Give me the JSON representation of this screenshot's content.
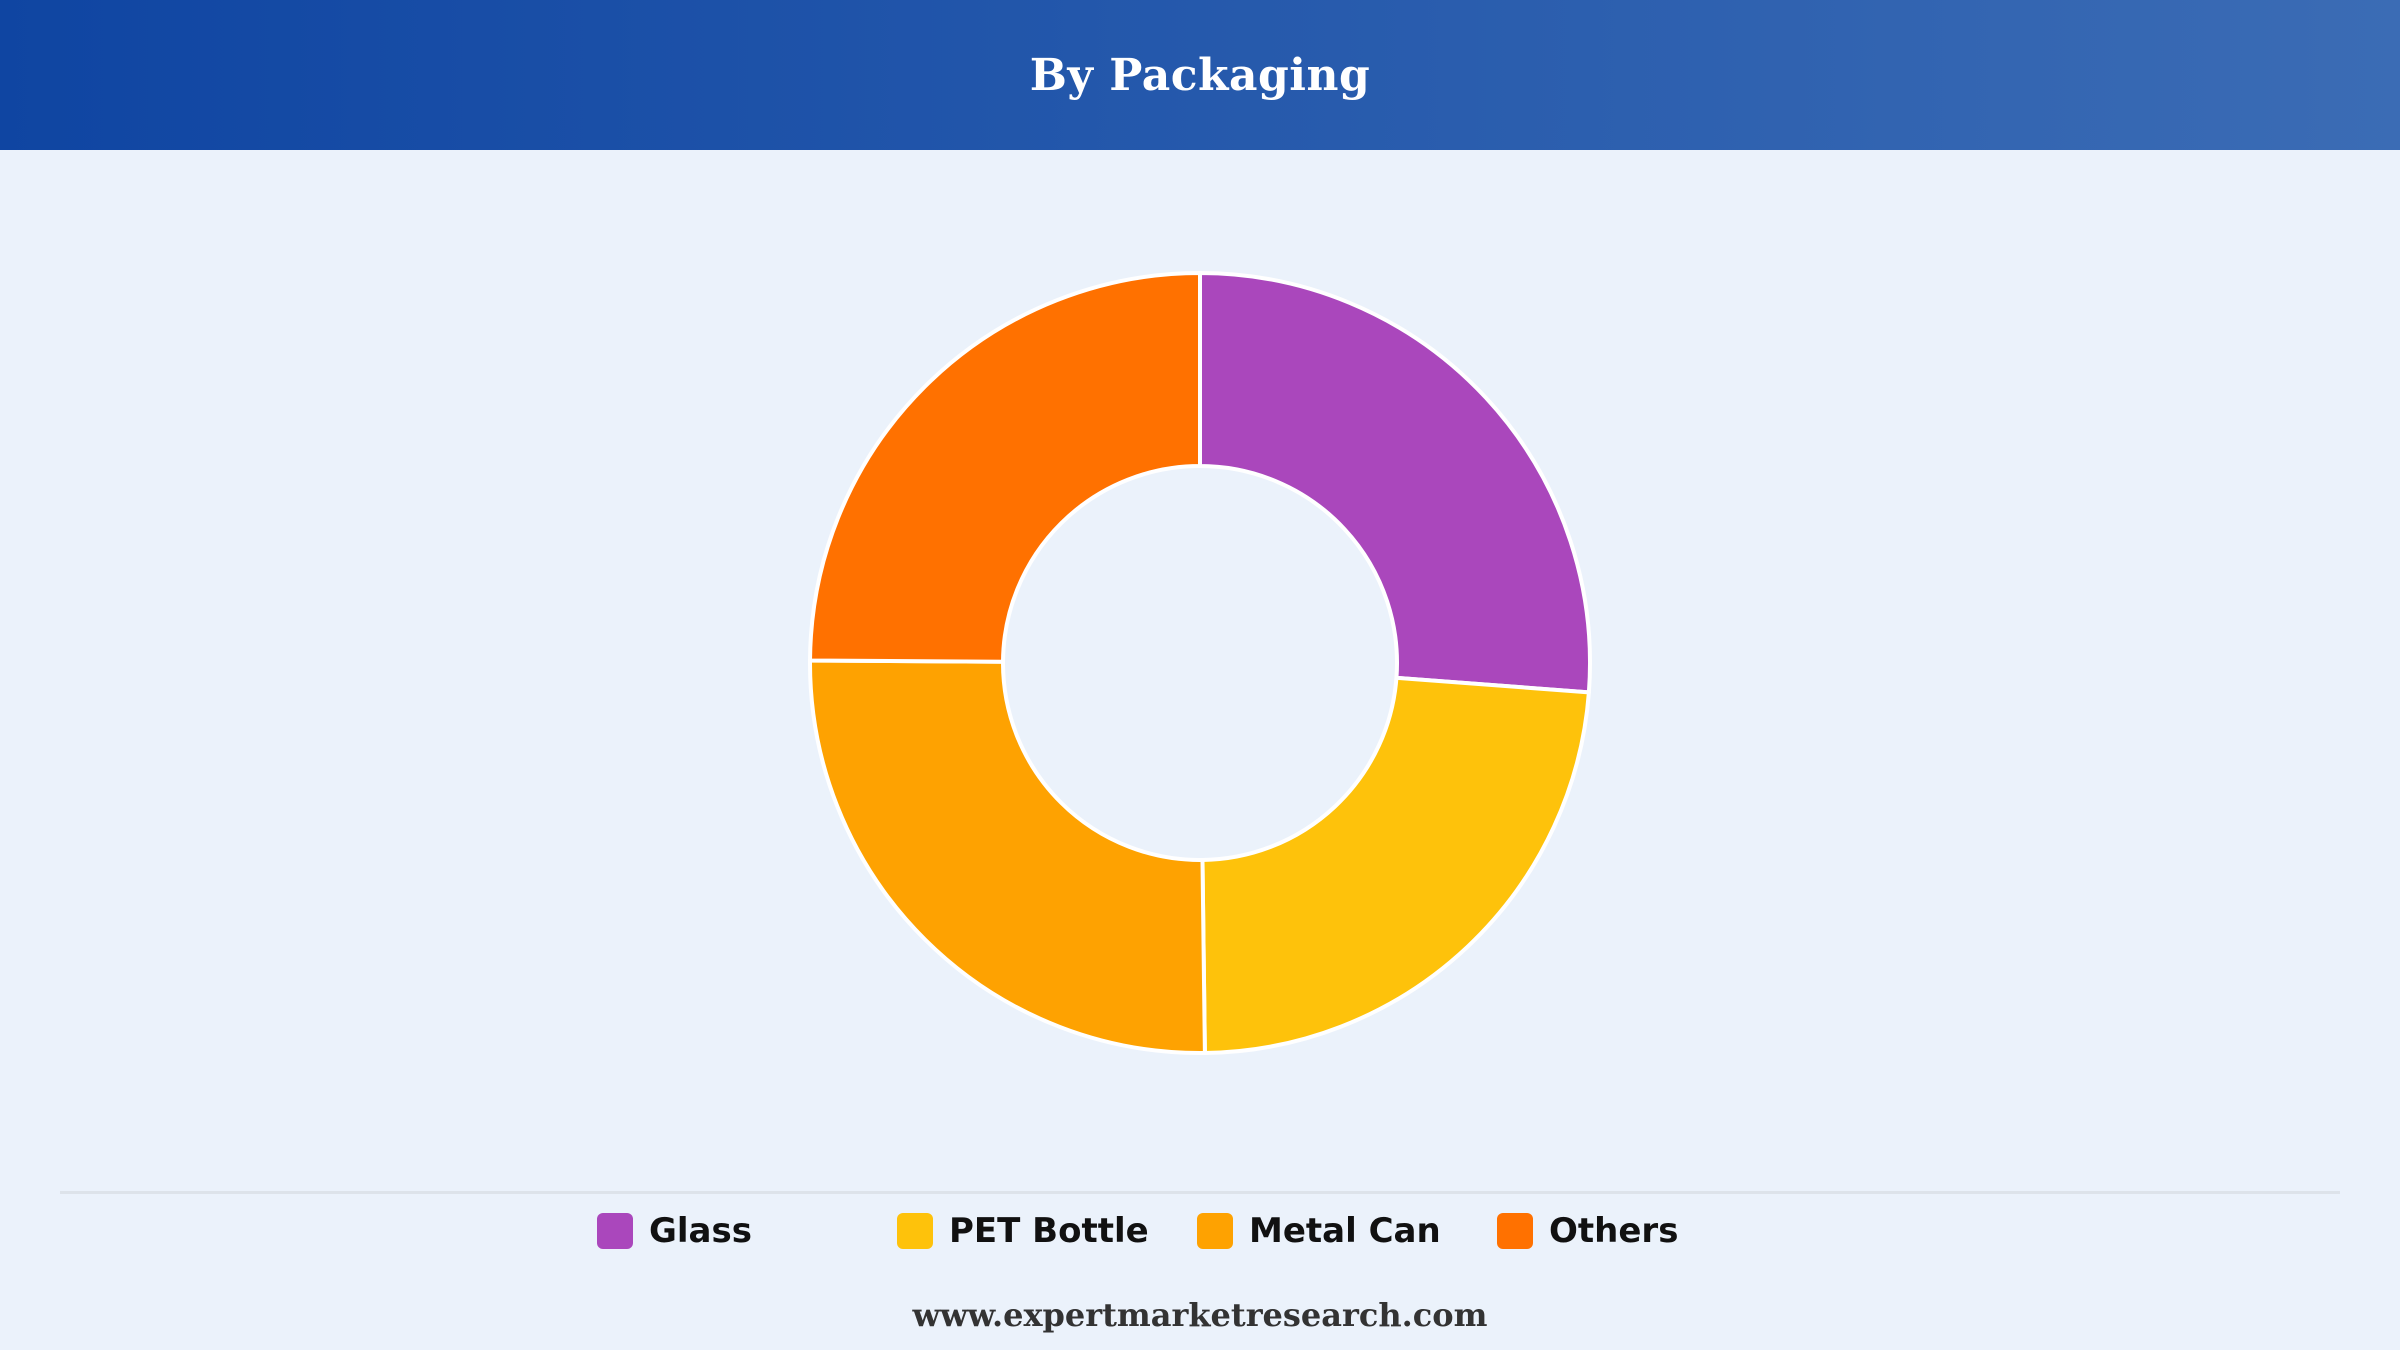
{
  "header": {
    "title": "By Packaging"
  },
  "chart_data": {
    "type": "pie",
    "donut": true,
    "title": "By Packaging",
    "categories": [
      "Glass",
      "PET Bottle",
      "Metal Can",
      "Others"
    ],
    "values": [
      26.2,
      23.6,
      25.3,
      24.9
    ],
    "unit": "%",
    "colors": [
      "#aa47bc",
      "#fec20b",
      "#fea201",
      "#ff7100"
    ],
    "legend_position": "bottom",
    "start_angle": "top",
    "direction": "clockwise"
  },
  "footer": {
    "source": "www.expertmarketresearch.com"
  }
}
